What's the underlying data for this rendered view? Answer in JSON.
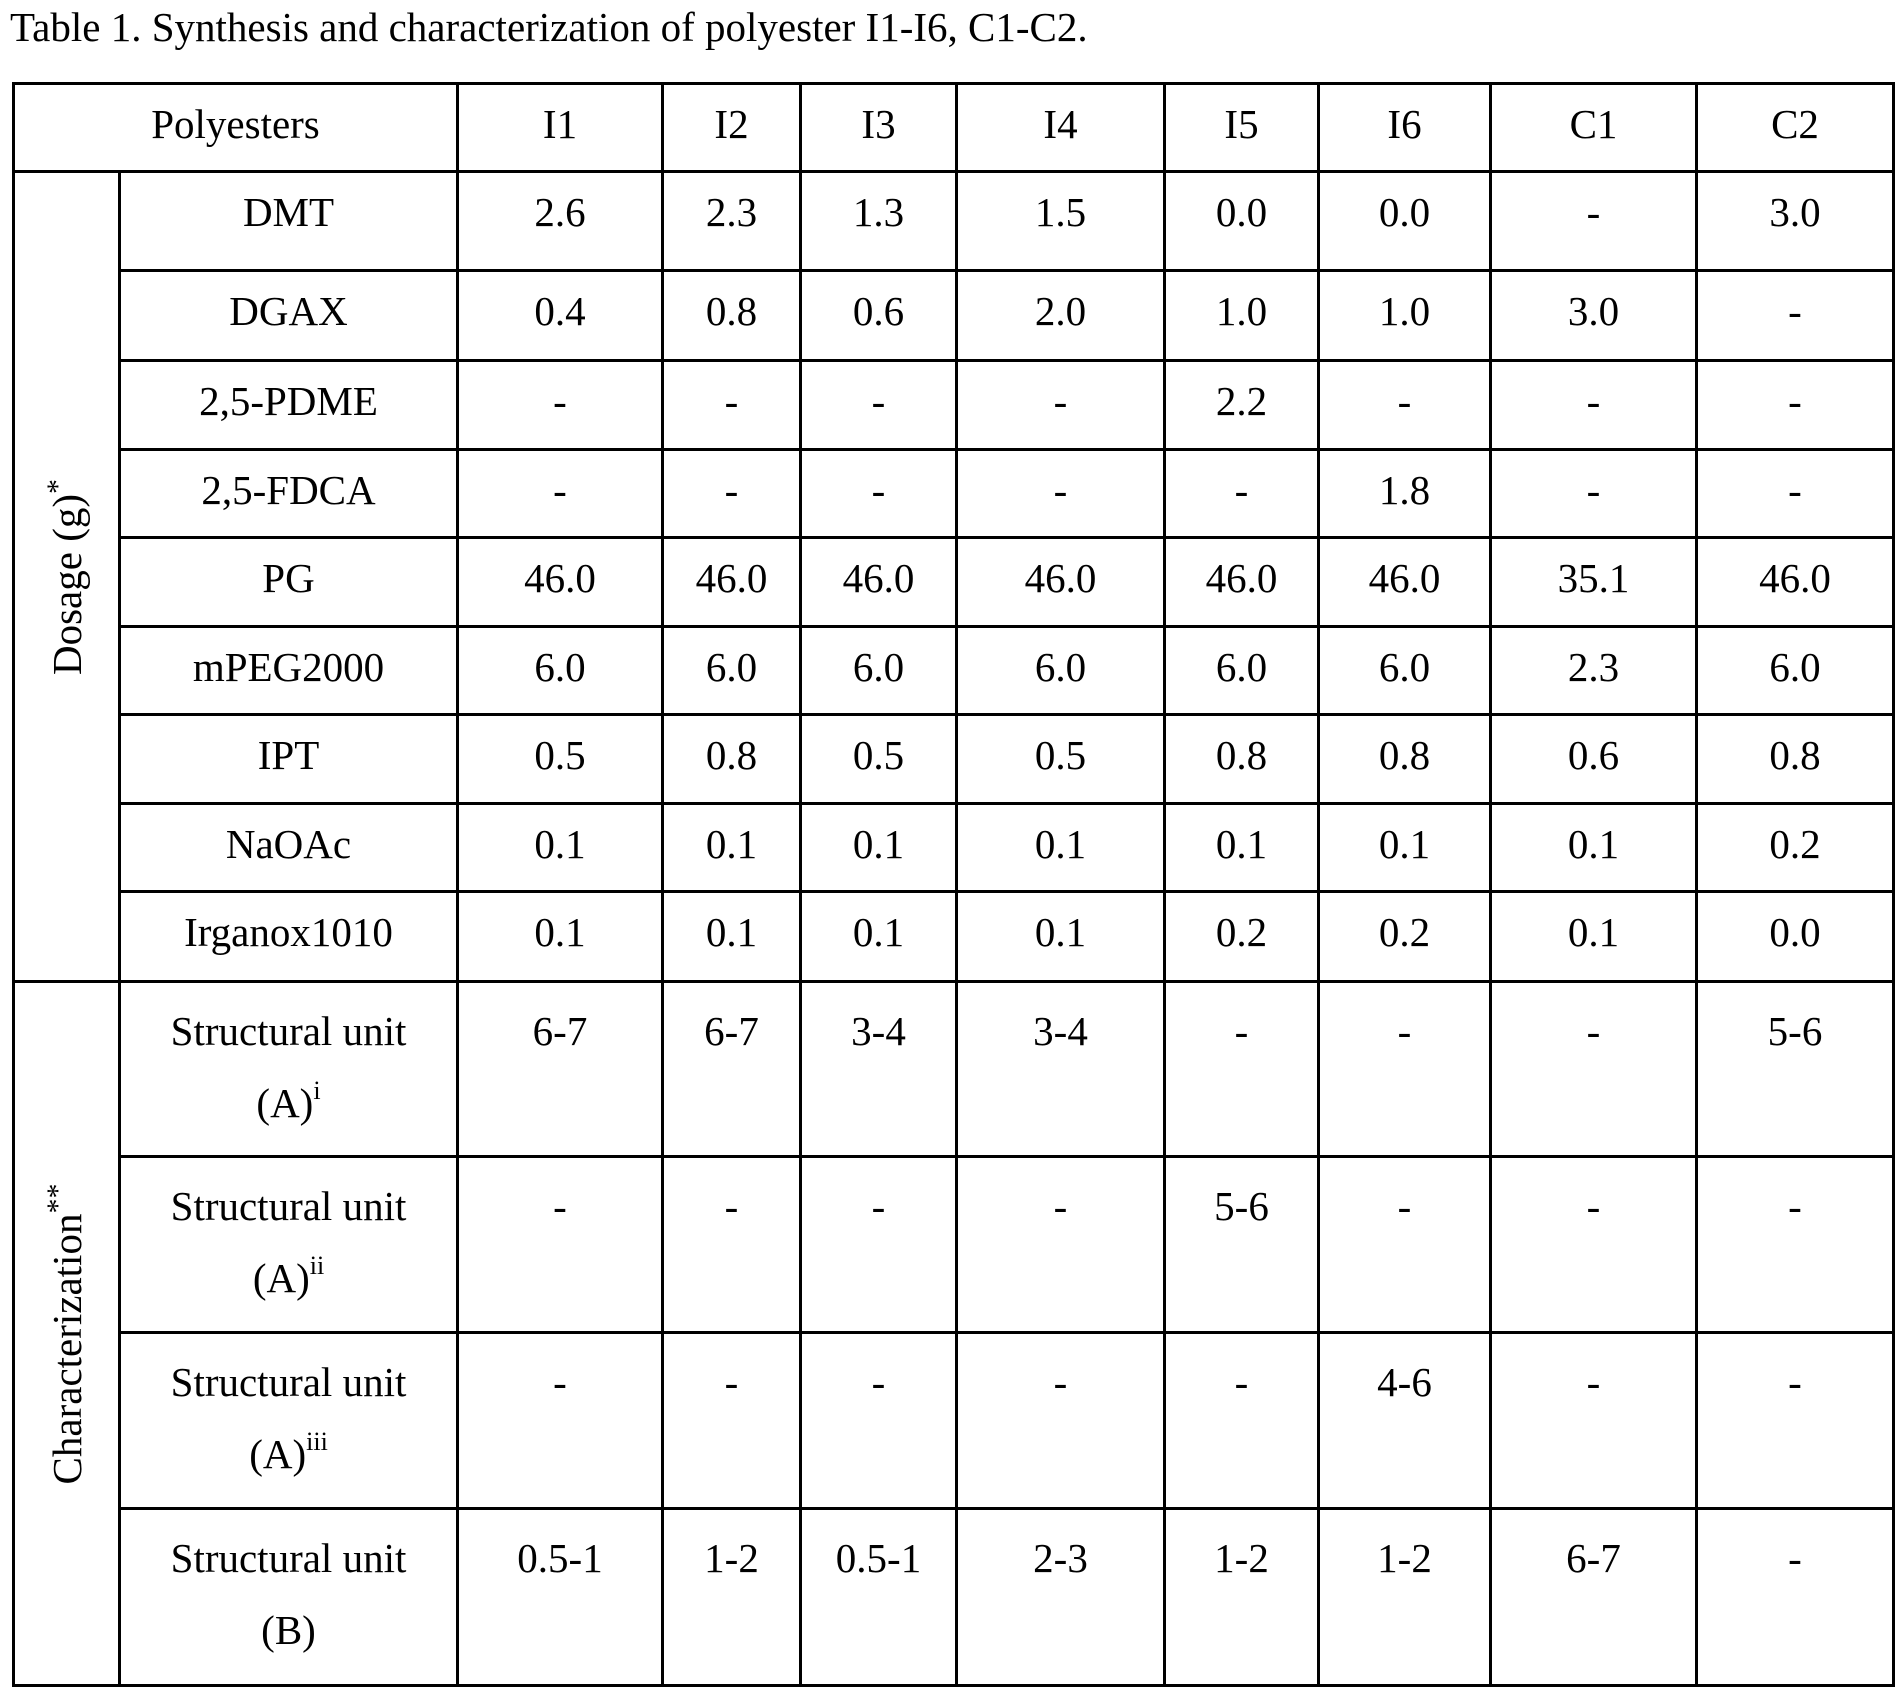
{
  "caption": "Table 1. Synthesis and characterization of polyester I1-I6, C1-C2.",
  "table": {
    "corner_header": "Polyesters",
    "columns": [
      "I1",
      "I2",
      "I3",
      "I4",
      "I5",
      "I6",
      "C1",
      "C2"
    ],
    "groups": [
      {
        "label": "Dosage (g)",
        "label_mark": "*",
        "rows": [
          {
            "name": "DMT",
            "values": [
              "2.6",
              "2.3",
              "1.3",
              "1.5",
              "0.0",
              "0.0",
              "-",
              "3.0"
            ]
          },
          {
            "name": "DGAX",
            "values": [
              "0.4",
              "0.8",
              "0.6",
              "2.0",
              "1.0",
              "1.0",
              "3.0",
              "-"
            ]
          },
          {
            "name": "2,5-PDME",
            "values": [
              "-",
              "-",
              "-",
              "-",
              "2.2",
              "-",
              "-",
              "-"
            ]
          },
          {
            "name": "2,5-FDCA",
            "values": [
              "-",
              "-",
              "-",
              "-",
              "-",
              "1.8",
              "-",
              "-"
            ]
          },
          {
            "name": "PG",
            "values": [
              "46.0",
              "46.0",
              "46.0",
              "46.0",
              "46.0",
              "46.0",
              "35.1",
              "46.0"
            ]
          },
          {
            "name": "mPEG2000",
            "values": [
              "6.0",
              "6.0",
              "6.0",
              "6.0",
              "6.0",
              "6.0",
              "2.3",
              "6.0"
            ]
          },
          {
            "name": "IPT",
            "values": [
              "0.5",
              "0.8",
              "0.5",
              "0.5",
              "0.8",
              "0.8",
              "0.6",
              "0.8"
            ]
          },
          {
            "name": "NaOAc",
            "values": [
              "0.1",
              "0.1",
              "0.1",
              "0.1",
              "0.1",
              "0.1",
              "0.1",
              "0.2"
            ]
          },
          {
            "name": "Irganox1010",
            "values": [
              "0.1",
              "0.1",
              "0.1",
              "0.1",
              "0.2",
              "0.2",
              "0.1",
              "0.0"
            ]
          }
        ]
      },
      {
        "label": "Characterization",
        "label_mark": "**",
        "rows": [
          {
            "name_line1": "Structural unit",
            "name_line2": "(A)",
            "name_sup": "i",
            "values": [
              "6-7",
              "6-7",
              "3-4",
              "3-4",
              "-",
              "-",
              "-",
              "5-6"
            ]
          },
          {
            "name_line1": "Structural unit",
            "name_line2": "(A)",
            "name_sup": "ii",
            "values": [
              "-",
              "-",
              "-",
              "-",
              "5-6",
              "-",
              "-",
              "-"
            ]
          },
          {
            "name_line1": "Structural unit",
            "name_line2": "(A)",
            "name_sup": "iii",
            "values": [
              "-",
              "-",
              "-",
              "-",
              "-",
              "4-6",
              "-",
              "-"
            ]
          },
          {
            "name_line1": "Structural unit",
            "name_line2": "(B)",
            "name_sup": "",
            "values": [
              "0.5-1",
              "1-2",
              "0.5-1",
              "2-3",
              "1-2",
              "1-2",
              "6-7",
              "-"
            ]
          }
        ]
      }
    ]
  }
}
